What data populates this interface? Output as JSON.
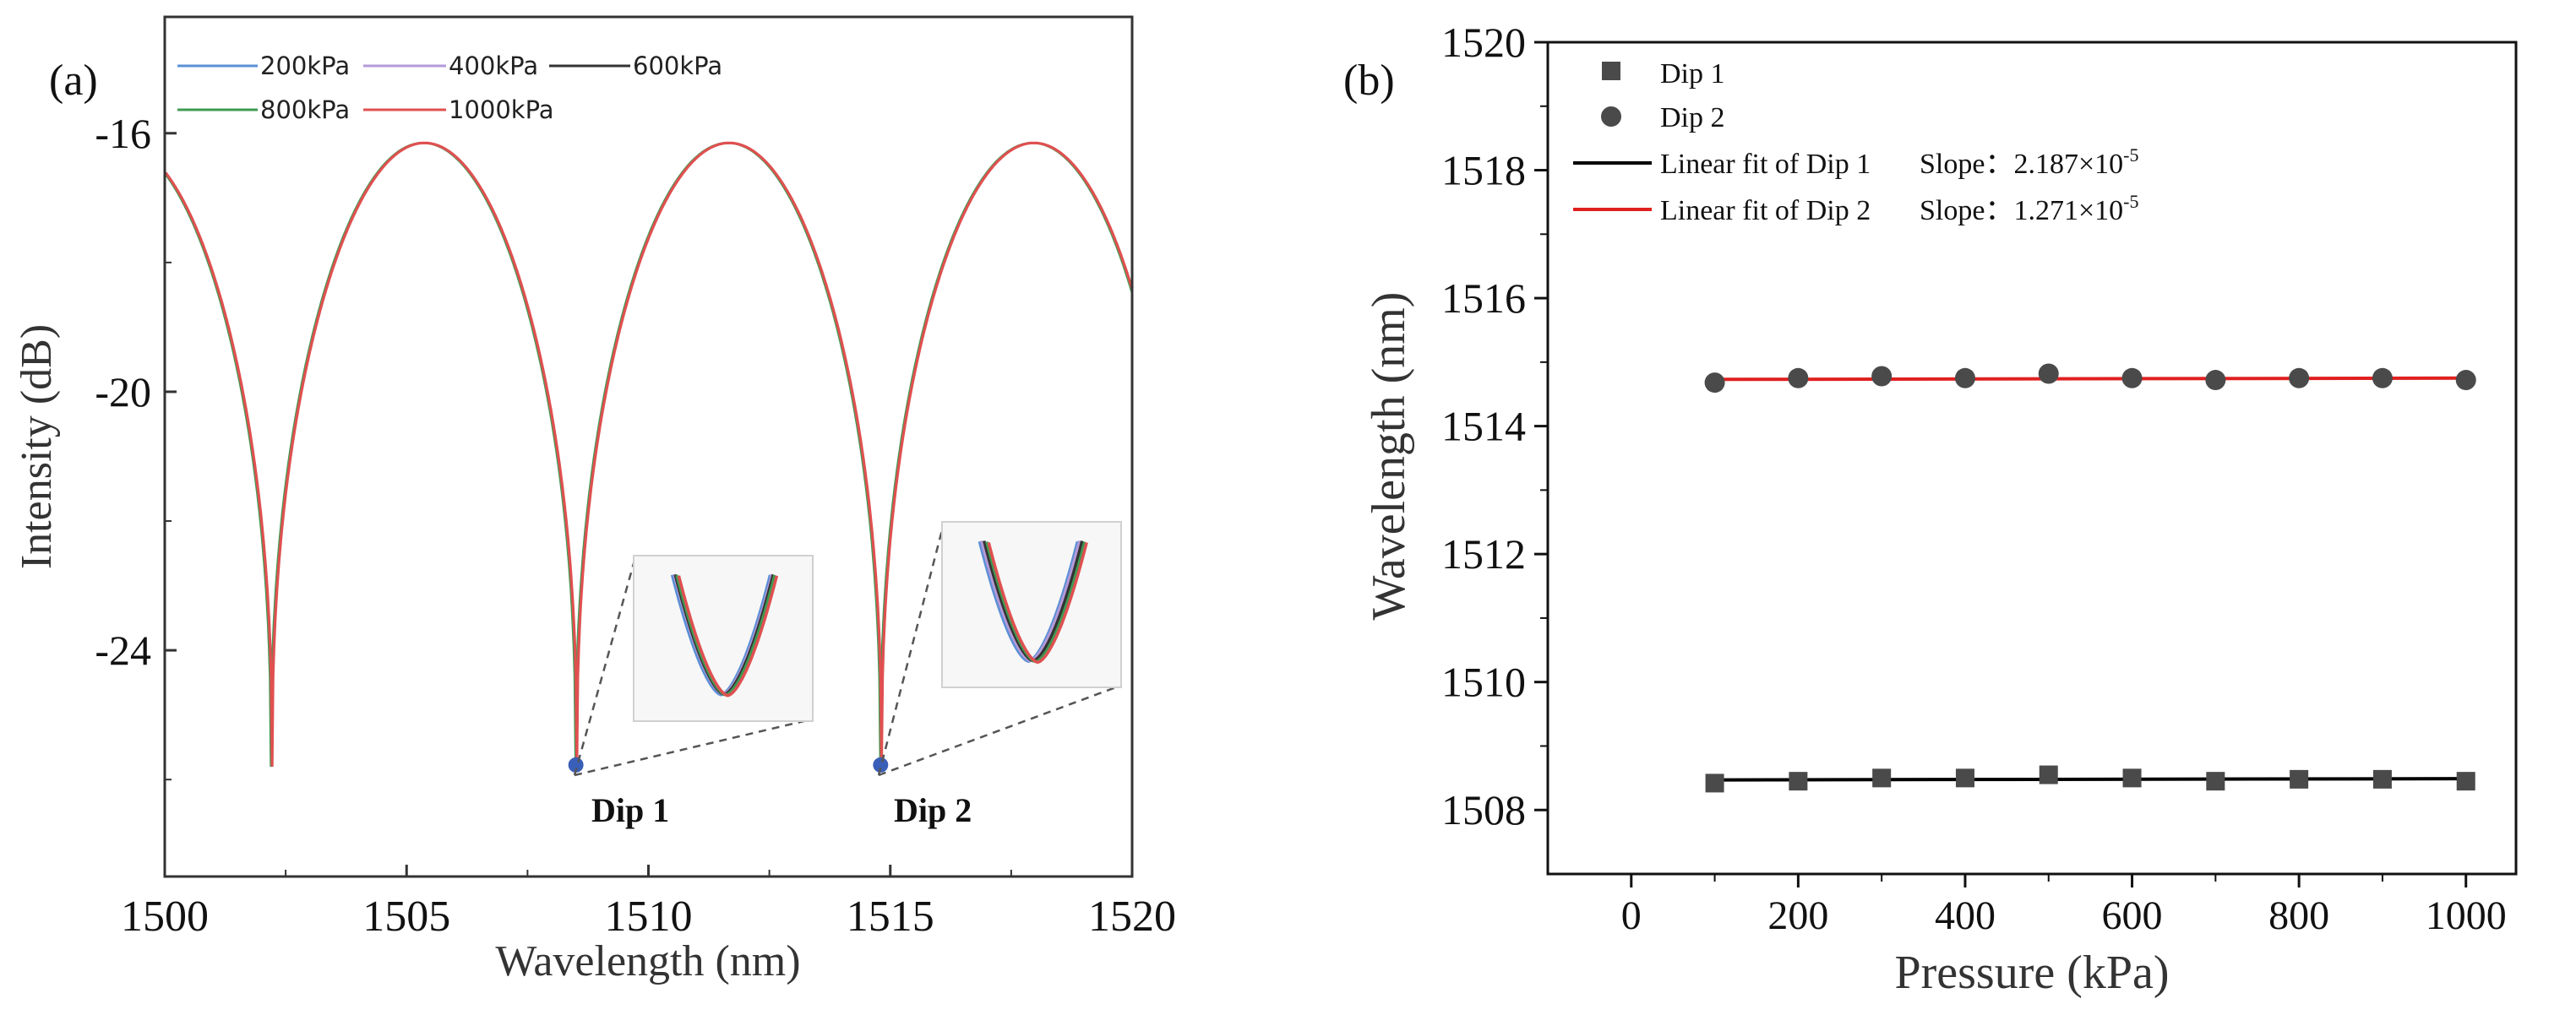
{
  "chart_data": [
    {
      "type": "line",
      "panel_label": "(a)",
      "xlabel": "Wavelength (nm)",
      "ylabel": "Intensity (dB)",
      "xlim": [
        1500,
        1520
      ],
      "ylim": [
        -27.5,
        -14.2
      ],
      "xticks": [
        "1500",
        "1505",
        "1510",
        "1515",
        "1520"
      ],
      "yticks": [
        "-16",
        "-20",
        "-24"
      ],
      "ytick_values": [
        -16,
        -20,
        -24
      ],
      "xtick_values": [
        1500,
        1505,
        1510,
        1515,
        1520
      ],
      "spectrum": {
        "min_db": -25.8,
        "max_db": -16.15,
        "dip_wavelengths": [
          1502.2,
          1508.5,
          1514.8
        ],
        "peak_wavelengths": [
          1505.3,
          1511.6,
          1517.9
        ]
      },
      "series": [
        {
          "name": "200kPa",
          "color": "#5b8fd6"
        },
        {
          "name": "400kPa",
          "color": "#b59ad8"
        },
        {
          "name": "600kPa",
          "color": "#333333"
        },
        {
          "name": "800kPa",
          "color": "#3f9a52"
        },
        {
          "name": "1000kPa",
          "color": "#e05050"
        }
      ],
      "annotations": [
        {
          "text": "Dip 1",
          "x": 1508.5,
          "y": -25.8
        },
        {
          "text": "Dip 2",
          "x": 1514.8,
          "y": -25.8
        }
      ]
    },
    {
      "type": "scatter",
      "panel_label": "(b)",
      "xlabel": "Pressure (kPa)",
      "ylabel": "Wavelength (nm)",
      "xlim": [
        -100,
        1060
      ],
      "ylim": [
        1507,
        1520
      ],
      "xticks": [
        "0",
        "200",
        "400",
        "600",
        "800",
        "1000"
      ],
      "xtick_values": [
        0,
        200,
        400,
        600,
        800,
        1000
      ],
      "yticks": [
        "1508",
        "1510",
        "1512",
        "1514",
        "1516",
        "1518",
        "1520"
      ],
      "ytick_values": [
        1508,
        1510,
        1512,
        1514,
        1516,
        1518,
        1520
      ],
      "x": [
        100,
        200,
        300,
        400,
        500,
        600,
        700,
        800,
        900,
        1000
      ],
      "series": [
        {
          "name": "Dip 1",
          "marker": "square",
          "color": "#4a4a4a",
          "values": [
            1508.42,
            1508.45,
            1508.5,
            1508.5,
            1508.55,
            1508.5,
            1508.45,
            1508.48,
            1508.48,
            1508.45
          ]
        },
        {
          "name": "Dip 2",
          "marker": "circle",
          "color": "#4a4a4a",
          "values": [
            1514.68,
            1514.75,
            1514.78,
            1514.75,
            1514.82,
            1514.75,
            1514.72,
            1514.75,
            1514.75,
            1514.72
          ]
        }
      ],
      "fits": [
        {
          "name": "Linear fit of Dip 1",
          "slope_label": "Slope：2.187×10",
          "slope_exp": "-5",
          "color": "#000000",
          "x_range": [
            100,
            1000
          ],
          "y_range": [
            1508.47,
            1508.49
          ]
        },
        {
          "name": "Linear fit of Dip 2",
          "slope_label": "Slope：1.271×10",
          "slope_exp": "-5",
          "color": "#e02020",
          "x_range": [
            100,
            1000
          ],
          "y_range": [
            1514.73,
            1514.75
          ]
        }
      ]
    }
  ]
}
